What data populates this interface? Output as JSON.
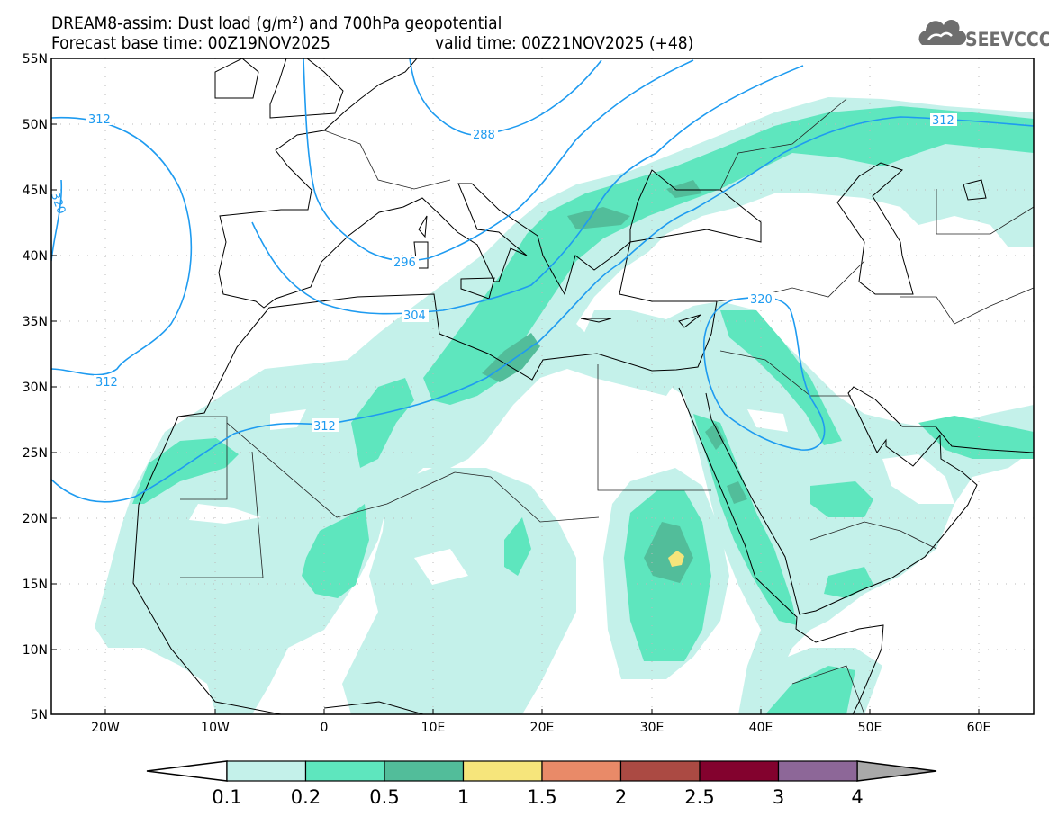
{
  "title": {
    "line1": "DREAM8-assim: Dust load (g/m²) and 700hPa geopotential",
    "base_time": "Forecast base time: 00Z19NOV2025",
    "valid_time": "valid time: 00Z21NOV2025 (+48)"
  },
  "logo": {
    "text": "SEEVCCC",
    "icon": "cloud-icon"
  },
  "map": {
    "lat_labels": [
      "55N",
      "50N",
      "45N",
      "40N",
      "35N",
      "30N",
      "25N",
      "20N",
      "15N",
      "10N",
      "5N"
    ],
    "lon_labels": [
      "20W",
      "10W",
      "0",
      "10E",
      "20E",
      "30E",
      "40E",
      "50E",
      "60E"
    ],
    "contour_labels": {
      "c312_nw": "312",
      "c320_w": "320",
      "c312_w": "312",
      "c312_main": "312",
      "c312_ne": "312",
      "c304": "304",
      "c296": "296",
      "c288": "288",
      "c320_e": "320"
    }
  },
  "colorbar": {
    "labels": [
      "0.1",
      "0.2",
      "0.5",
      "1",
      "1.5",
      "2",
      "2.5",
      "3",
      "4"
    ],
    "colors": [
      "#c4f1ea",
      "#5ee6be",
      "#52bd9a",
      "#f6e57b",
      "#e98a68",
      "#ab4a43",
      "#83022e",
      "#8d6798"
    ],
    "below_color": "#ffffff",
    "above_color": "#a9a9a9"
  }
}
